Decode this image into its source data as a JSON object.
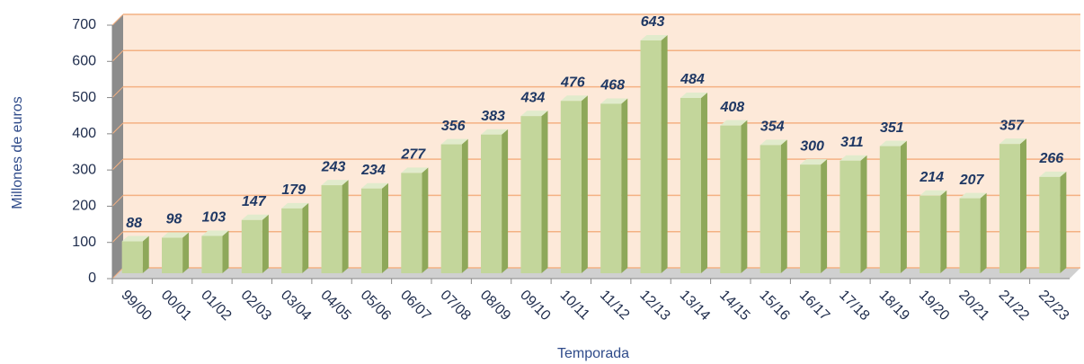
{
  "chart_data": {
    "type": "bar",
    "y_label": "Millones de euros",
    "x_label": "Temporada",
    "categories": [
      "99/00",
      "00/01",
      "01/02",
      "02/03",
      "03/04",
      "04/05",
      "05/06",
      "06/07",
      "07/08",
      "08/09",
      "09/10",
      "10/11",
      "11/12",
      "12/13",
      "13/14",
      "14/15",
      "15/16",
      "16/17",
      "17/18",
      "18/19",
      "19/20",
      "20/21",
      "21/22",
      "22/23"
    ],
    "values": [
      88,
      98,
      103,
      147,
      179,
      243,
      234,
      277,
      356,
      383,
      434,
      476,
      468,
      643,
      484,
      408,
      354,
      300,
      311,
      351,
      214,
      207,
      357,
      266
    ],
    "color": "#c3d69b",
    "ylim": [
      0,
      700
    ],
    "yticks": [
      0,
      100,
      200,
      300,
      400,
      500,
      600,
      700
    ],
    "grid": true
  }
}
